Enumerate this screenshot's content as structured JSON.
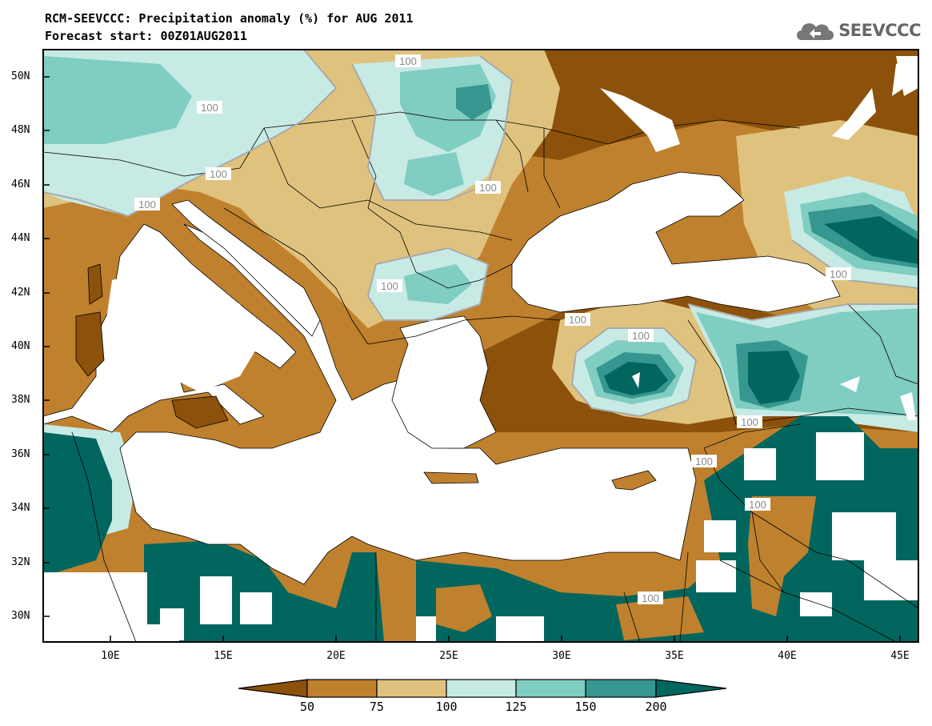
{
  "title": {
    "line1": "RCM-SEEVCCC: Precipitation anomaly (%) for AUG 2011",
    "line2": "Forecast start: 00Z01AUG2011"
  },
  "logo": {
    "text": "SEEVCCC",
    "icon": "cloud-icon"
  },
  "map": {
    "lat_labels": [
      "50N",
      "48N",
      "46N",
      "44N",
      "42N",
      "40N",
      "38N",
      "36N",
      "34N",
      "32N",
      "30N"
    ],
    "lon_labels": [
      "10E",
      "15E",
      "20E",
      "25E",
      "30E",
      "35E",
      "40E",
      "45E"
    ],
    "contour_label": "100",
    "colors": {
      "below50": "#8c510a",
      "50_75": "#bf812d",
      "75_100": "#dfc27d",
      "100_125": "#c7eae5",
      "125_150": "#80cdc1",
      "150_200": "#35978f",
      "above200": "#01665e",
      "contour": "#aaaaaa"
    }
  },
  "colorbar": {
    "labels": [
      "50",
      "75",
      "100",
      "125",
      "150",
      "200"
    ]
  }
}
